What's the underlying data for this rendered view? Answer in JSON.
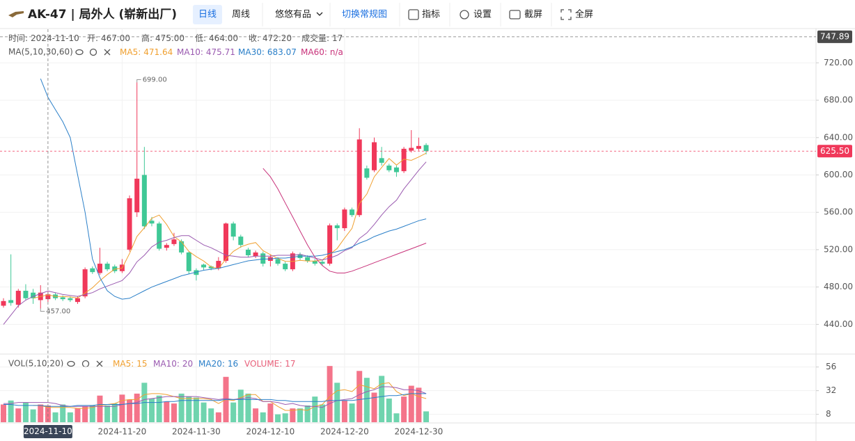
{
  "toolbar": {
    "title": "AK-47 | 局外人 (崭新出厂)",
    "buttons": [
      "日线",
      "周线",
      "悠悠有品",
      "切换常规图",
      "指标",
      "设置",
      "截屏",
      "全屏"
    ]
  },
  "chart_data": {
    "type": "candlestick",
    "info": [
      {
        "label": "时间:",
        "value": "2024-11-10"
      },
      {
        "label": "开:",
        "value": "467.00"
      },
      {
        "label": "高:",
        "value": "475.00"
      },
      {
        "label": "低:",
        "value": "464.00"
      },
      {
        "label": "收:",
        "value": "472.20"
      },
      {
        "label": "成交量:",
        "value": "17"
      }
    ],
    "ma_title": "MA(5,10,30,60)",
    "ma": [
      {
        "name": "MA5:",
        "current": "471.64",
        "color": "#f0a030",
        "values": [
          null,
          null,
          null,
          null,
          468,
          469.8,
          471.64,
          470,
          469.8,
          469.4,
          468.2,
          473.6,
          479.2,
          486.8,
          493.4,
          499.2,
          500.2,
          516,
          534.2,
          543.4,
          553.6,
          557,
          547,
          534,
          528.4,
          518.2,
          512.6,
          507.8,
          501.6,
          499.8,
          510,
          518.2,
          523,
          525.8,
          527.6,
          519,
          514.6,
          510.6,
          507.6,
          507.4,
          508.6,
          507.8,
          507.8,
          509,
          515,
          521.4,
          532.4,
          542.8,
          569.4,
          579.6,
          598,
          608,
          617.6,
          610.6,
          616.8,
          615.6,
          619.2,
          623.3
        ]
      },
      {
        "name": "MA10:",
        "current": "475.71",
        "color": "#9a5ab0",
        "values": [
          440,
          450,
          460,
          466,
          470,
          473,
          475.71,
          474,
          472,
          471,
          470,
          472,
          474,
          478,
          481,
          484,
          487,
          495,
          507,
          514,
          523,
          528,
          530,
          533,
          535,
          535,
          530,
          525,
          522,
          518,
          514,
          513,
          512,
          512,
          513,
          513,
          513,
          514,
          514,
          514,
          515,
          513,
          511,
          509,
          511,
          514,
          519,
          522,
          532,
          538,
          547,
          557,
          566,
          573,
          585,
          595,
          605,
          614
        ]
      },
      {
        "name": "MA30:",
        "current": "683.07",
        "color": "#2a7fc8",
        "values": [
          null,
          null,
          null,
          null,
          null,
          703,
          683.07,
          670,
          657,
          640,
          600,
          560,
          510,
          490,
          476,
          470,
          467,
          468,
          472,
          476,
          480,
          483,
          486,
          489,
          492,
          494,
          496,
          498,
          499,
          500,
          502,
          504,
          506,
          508,
          509,
          510,
          510,
          511,
          511,
          512,
          513,
          513,
          513,
          514,
          516,
          518,
          520,
          523,
          527,
          530,
          534,
          537,
          540,
          542,
          545,
          548,
          551,
          553
        ]
      },
      {
        "name": "MA60:",
        "current": "n/a",
        "color": "#c8327a",
        "values": [
          null,
          null,
          null,
          null,
          null,
          null,
          null,
          null,
          null,
          null,
          null,
          null,
          null,
          null,
          null,
          null,
          null,
          null,
          null,
          null,
          null,
          null,
          null,
          null,
          null,
          null,
          null,
          null,
          null,
          null,
          null,
          null,
          null,
          null,
          null,
          607,
          598,
          585,
          570,
          555,
          540,
          525,
          512,
          503,
          497,
          495,
          495,
          497,
          500,
          503,
          506,
          509,
          512,
          515,
          518,
          521,
          524,
          527
        ]
      }
    ],
    "categories": [
      "2024-11-04",
      "2024-11-05",
      "2024-11-06",
      "2024-11-07",
      "2024-11-08",
      "2024-11-09",
      "2024-11-10",
      "2024-11-11",
      "2024-11-12",
      "2024-11-13",
      "2024-11-14",
      "2024-11-15",
      "2024-11-16",
      "2024-11-17",
      "2024-11-18",
      "2024-11-19",
      "2024-11-20",
      "2024-11-21",
      "2024-11-22",
      "2024-11-23",
      "2024-11-24",
      "2024-11-25",
      "2024-11-26",
      "2024-11-27",
      "2024-11-28",
      "2024-11-29",
      "2024-11-30",
      "2024-12-01",
      "2024-12-02",
      "2024-12-03",
      "2024-12-04",
      "2024-12-05",
      "2024-12-06",
      "2024-12-07",
      "2024-12-08",
      "2024-12-09",
      "2024-12-10",
      "2024-12-11",
      "2024-12-12",
      "2024-12-13",
      "2024-12-14",
      "2024-12-15",
      "2024-12-16",
      "2024-12-17",
      "2024-12-18",
      "2024-12-19",
      "2024-12-20",
      "2024-12-21",
      "2024-12-22",
      "2024-12-23",
      "2024-12-24",
      "2024-12-25",
      "2024-12-26",
      "2024-12-27",
      "2024-12-28",
      "2024-12-29",
      "2024-12-30",
      "2024-12-31"
    ],
    "open": [
      460,
      466,
      461,
      476,
      474,
      466,
      467,
      472,
      469,
      468,
      464,
      470,
      500,
      495,
      505,
      502,
      497,
      520,
      560,
      600,
      551,
      548,
      522,
      526,
      529,
      517,
      498,
      504,
      502,
      500,
      508,
      548,
      534,
      520,
      513,
      516,
      508,
      510,
      505,
      499,
      515,
      512,
      508,
      507,
      505,
      546,
      543,
      563,
      557,
      607,
      605,
      618,
      610,
      608,
      604,
      626,
      628,
      632
    ],
    "high": [
      468,
      515,
      478,
      483,
      478,
      482,
      475,
      474,
      471,
      470,
      470,
      501,
      502,
      522,
      507,
      504,
      510,
      578,
      699,
      630,
      555,
      550,
      527,
      538,
      531,
      518,
      500,
      505,
      503,
      512,
      549,
      550,
      536,
      522,
      519,
      518,
      515,
      512,
      507,
      518,
      517,
      514,
      510,
      509,
      548,
      548,
      565,
      565,
      650,
      610,
      640,
      630,
      612,
      610,
      630,
      648,
      640,
      634
    ],
    "low": [
      458,
      460,
      458,
      466,
      462,
      457,
      464,
      466,
      465,
      464,
      462,
      468,
      494,
      493,
      497,
      495,
      495,
      518,
      555,
      542,
      545,
      519,
      519,
      524,
      515,
      494,
      487,
      498,
      498,
      498,
      506,
      530,
      522,
      512,
      511,
      502,
      502,
      503,
      497,
      497,
      509,
      506,
      503,
      503,
      503,
      530,
      540,
      555,
      555,
      595,
      603,
      610,
      603,
      598,
      602,
      624,
      626,
      622
    ],
    "close": [
      465,
      463,
      476,
      468,
      468,
      474,
      472.2,
      468,
      467,
      466,
      468,
      499,
      496,
      505,
      499,
      497,
      504,
      575,
      596,
      545,
      548,
      521,
      525,
      531,
      517,
      497,
      493,
      501,
      500,
      508,
      548,
      534,
      525,
      514,
      517,
      505,
      512,
      505,
      499,
      516,
      511,
      508,
      505,
      505,
      546,
      543,
      563,
      557,
      638,
      597,
      635,
      613,
      605,
      603,
      628,
      629,
      631,
      625.5
    ],
    "up_color": "#f0385a",
    "down_color": "#3fc896",
    "ylim": [
      409,
      756
    ],
    "yticks": [
      {
        "value": 440,
        "label": "440.00"
      },
      {
        "value": 480,
        "label": "480.00"
      },
      {
        "value": 520,
        "label": "520.00"
      },
      {
        "value": 560,
        "label": "560.00"
      },
      {
        "value": 600,
        "label": "600.00"
      },
      {
        "value": 640,
        "label": "640.00"
      },
      {
        "value": 680,
        "label": "680.00"
      },
      {
        "value": 720,
        "label": "720.00"
      }
    ],
    "xticks": [
      "2024-11-20",
      "2024-11-30",
      "2024-12-10",
      "2024-12-20",
      "2024-12-30"
    ],
    "grid": true,
    "crosshair": {
      "date": "2024-11-10",
      "price": {
        "value": 747.89,
        "label": "747.89"
      }
    },
    "last_price": {
      "value": 625.5,
      "label": "625.50"
    },
    "high_marker": {
      "date": "2024-11-22",
      "value": 699,
      "label": "699.00"
    },
    "low_marker": {
      "date": "2024-11-09",
      "value": 457,
      "label": "457.00"
    },
    "volume": {
      "title": "VOL(5,10,20)",
      "values": [
        18,
        22,
        14,
        20,
        13,
        18,
        17,
        10,
        18,
        10,
        14,
        16,
        17,
        27,
        17,
        19,
        28,
        23,
        29,
        40,
        24,
        27,
        21,
        19,
        29,
        26,
        25,
        20,
        14,
        10,
        46,
        20,
        33,
        29,
        14,
        10,
        19,
        8,
        9,
        14,
        14,
        17,
        26,
        18,
        57,
        40,
        22,
        19,
        52,
        45,
        30,
        47,
        24,
        9,
        26,
        37,
        35,
        11
      ],
      "up_color": "#f4748a",
      "down_color": "#6fd4ae",
      "ylim": [
        0,
        67
      ],
      "yticks": [
        8,
        32,
        56
      ],
      "ma": [
        {
          "name": "MA5:",
          "current": "15",
          "color": "#f0a030",
          "values": [
            null,
            null,
            null,
            null,
            17,
            17,
            15,
            15,
            15,
            15,
            14,
            14,
            15,
            17,
            18,
            19,
            22,
            23,
            23,
            28,
            29,
            29,
            28,
            26,
            24,
            24,
            24,
            24,
            23,
            19,
            23,
            22,
            25,
            28,
            28,
            21,
            21,
            16,
            12,
            12,
            13,
            12,
            16,
            18,
            26,
            32,
            33,
            31,
            38,
            36,
            34,
            39,
            40,
            31,
            27,
            29,
            26,
            24
          ]
        },
        {
          "name": "MA10:",
          "current": "20",
          "color": "#9a5ab0",
          "values": [
            19,
            19,
            20,
            20,
            20,
            20,
            20,
            19,
            17,
            16,
            16,
            16,
            16,
            16,
            16,
            16,
            18,
            19,
            20,
            23,
            24,
            25,
            26,
            26,
            26,
            26,
            26,
            25,
            24,
            23,
            24,
            23,
            24,
            25,
            24,
            21,
            21,
            20,
            18,
            19,
            17,
            16,
            16,
            15,
            19,
            22,
            23,
            24,
            28,
            31,
            33,
            36,
            36,
            35,
            33,
            33,
            32,
            29
          ]
        },
        {
          "name": "MA20:",
          "current": "16",
          "color": "#2a7fc8",
          "values": [
            18,
            18,
            17,
            17,
            17,
            17,
            16,
            16,
            16,
            16,
            17,
            17,
            17,
            18,
            18,
            18,
            18,
            19,
            19,
            20,
            20,
            20,
            21,
            21,
            22,
            22,
            22,
            22,
            22,
            22,
            23,
            23,
            23,
            23,
            23,
            23,
            23,
            22,
            22,
            21,
            21,
            21,
            21,
            21,
            22,
            22,
            22,
            22,
            23,
            24,
            25,
            26,
            27,
            27,
            28,
            29,
            29,
            29
          ]
        }
      ],
      "current": {
        "name": "VOLUME:",
        "current": "17",
        "color": "#e8607a"
      }
    }
  }
}
